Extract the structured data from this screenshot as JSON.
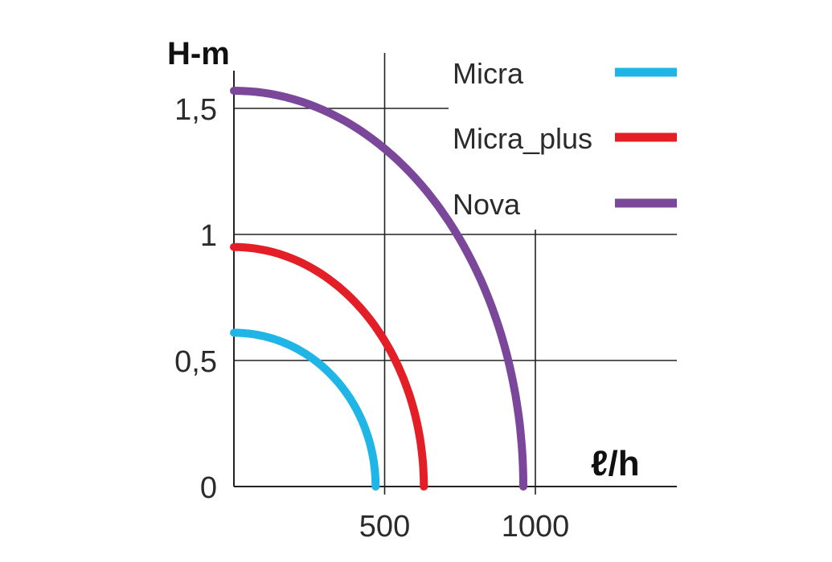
{
  "chart_data": {
    "type": "line",
    "ylabel": "H-m",
    "xlabel": "ℓ/h",
    "xlim": [
      0,
      1500
    ],
    "ylim": [
      0,
      1.6
    ],
    "x_ticks": [
      {
        "value": 500,
        "label": "500"
      },
      {
        "value": 1000,
        "label": "1000"
      }
    ],
    "y_ticks": [
      {
        "value": 0,
        "label": "0"
      },
      {
        "value": 0.5,
        "label": "0,5"
      },
      {
        "value": 1,
        "label": "1"
      },
      {
        "value": 1.5,
        "label": "1,5"
      }
    ],
    "grid": true,
    "legend_position": "top-right",
    "series": [
      {
        "name": "Micra",
        "color": "#1fb5e6",
        "max_flow": 470,
        "max_head": 0.61
      },
      {
        "name": "Micra_plus",
        "color": "#e41e26",
        "max_flow": 630,
        "max_head": 0.95
      },
      {
        "name": "Nova",
        "color": "#7b479a",
        "max_flow": 960,
        "max_head": 1.57
      }
    ]
  }
}
